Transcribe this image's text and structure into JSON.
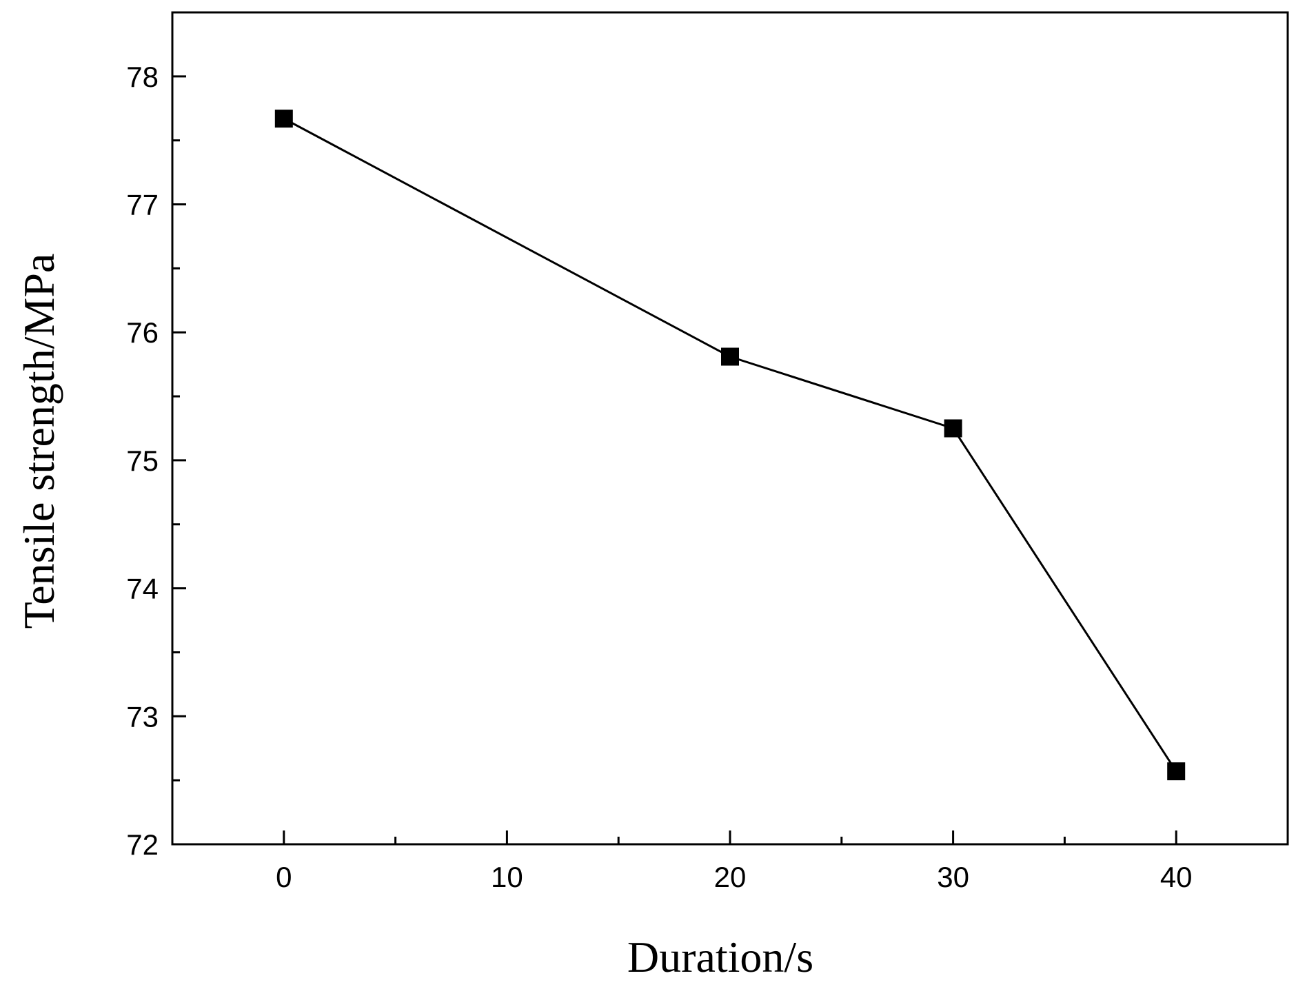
{
  "chart_data": {
    "type": "line",
    "title": "",
    "xlabel": "Duration/s",
    "ylabel": "Tensile strength/MPa",
    "xlim": [
      -5,
      45
    ],
    "ylim": [
      72,
      78.5
    ],
    "x_major_ticks": [
      0,
      10,
      20,
      30,
      40
    ],
    "x_minor_ticks": [
      5,
      15,
      25,
      35
    ],
    "y_major_ticks": [
      72,
      73,
      74,
      75,
      76,
      77,
      78
    ],
    "y_minor_ticks": [
      72.5,
      73.5,
      74.5,
      75.5,
      76.5,
      77.5
    ],
    "x_tick_labels": [
      "0",
      "10",
      "20",
      "30",
      "40"
    ],
    "y_tick_labels": [
      "72",
      "73",
      "74",
      "75",
      "76",
      "77",
      "78"
    ],
    "grid": false,
    "legend": "none",
    "marker": "square",
    "color": "#000000",
    "series": [
      {
        "x": [
          0,
          20,
          30,
          40
        ],
        "y": [
          77.67,
          75.81,
          75.25,
          72.57
        ]
      }
    ]
  }
}
